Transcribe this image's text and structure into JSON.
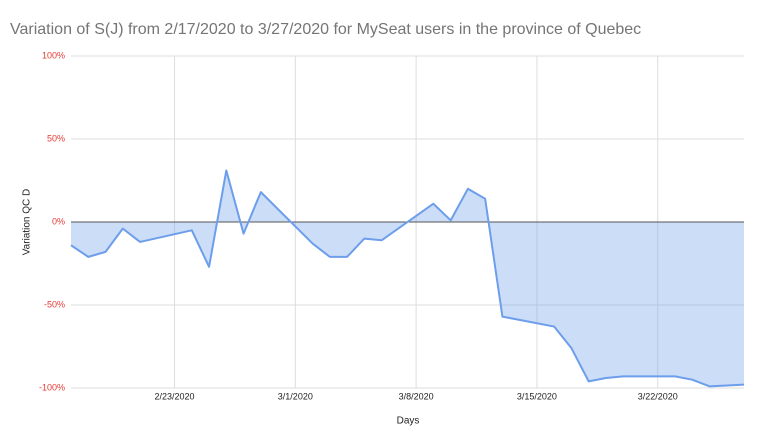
{
  "chart_data": {
    "type": "area",
    "title": "Variation of S(J) from 2/17/2020 to 3/27/2020 for MySeat users in the province of Quebec",
    "x_label": "Days",
    "y_label": "Variation QC D",
    "x": [
      "2/17/2020",
      "2/18/2020",
      "2/19/2020",
      "2/20/2020",
      "2/21/2020",
      "2/24/2020",
      "2/25/2020",
      "2/26/2020",
      "2/27/2020",
      "2/28/2020",
      "3/2/2020",
      "3/3/2020",
      "3/4/2020",
      "3/5/2020",
      "3/6/2020",
      "3/9/2020",
      "3/10/2020",
      "3/11/2020",
      "3/12/2020",
      "3/13/2020",
      "3/16/2020",
      "3/17/2020",
      "3/18/2020",
      "3/19/2020",
      "3/20/2020",
      "3/23/2020",
      "3/24/2020",
      "3/25/2020",
      "3/27/2020"
    ],
    "values": [
      -14,
      -21,
      -18,
      -4,
      -12,
      -5,
      -27,
      31,
      -7,
      18,
      -13,
      -21,
      -21,
      -10,
      -11,
      11,
      1,
      20,
      14,
      -57,
      -63,
      -76,
      -96,
      -94,
      -93,
      -93,
      -95,
      -99,
      -98
    ],
    "color": "#6d9eeb",
    "xlim": [
      "2/17/2020",
      "3/27/2020"
    ],
    "xticks": [
      "2/23/2020",
      "3/1/2020",
      "3/8/2020",
      "3/15/2020",
      "3/22/2020"
    ],
    "ylim": [
      -100,
      100
    ],
    "yticks": [
      {
        "value": -100,
        "label": "-100%"
      },
      {
        "value": -50,
        "label": "-50%"
      },
      {
        "value": 0,
        "label": "0%"
      },
      {
        "value": 50,
        "label": "50%"
      },
      {
        "value": 100,
        "label": "100%"
      }
    ],
    "grid": true
  }
}
